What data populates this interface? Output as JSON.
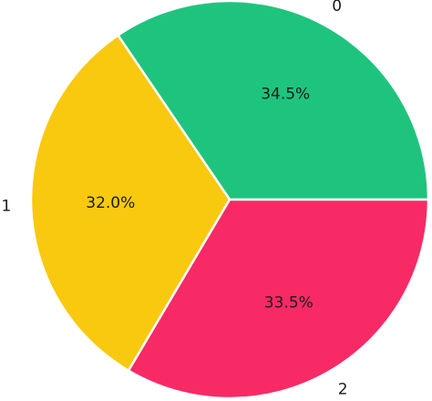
{
  "chart_data": {
    "type": "pie",
    "categories": [
      "0",
      "1",
      "2"
    ],
    "values": [
      34.5,
      32.0,
      33.5
    ],
    "value_labels": [
      "34.5%",
      "32.0%",
      "33.5%"
    ],
    "colors": [
      "#1ec47e",
      "#f9c90f",
      "#f72a66"
    ],
    "start_angle_deg": 0,
    "direction": "counterclockwise",
    "title": ""
  }
}
